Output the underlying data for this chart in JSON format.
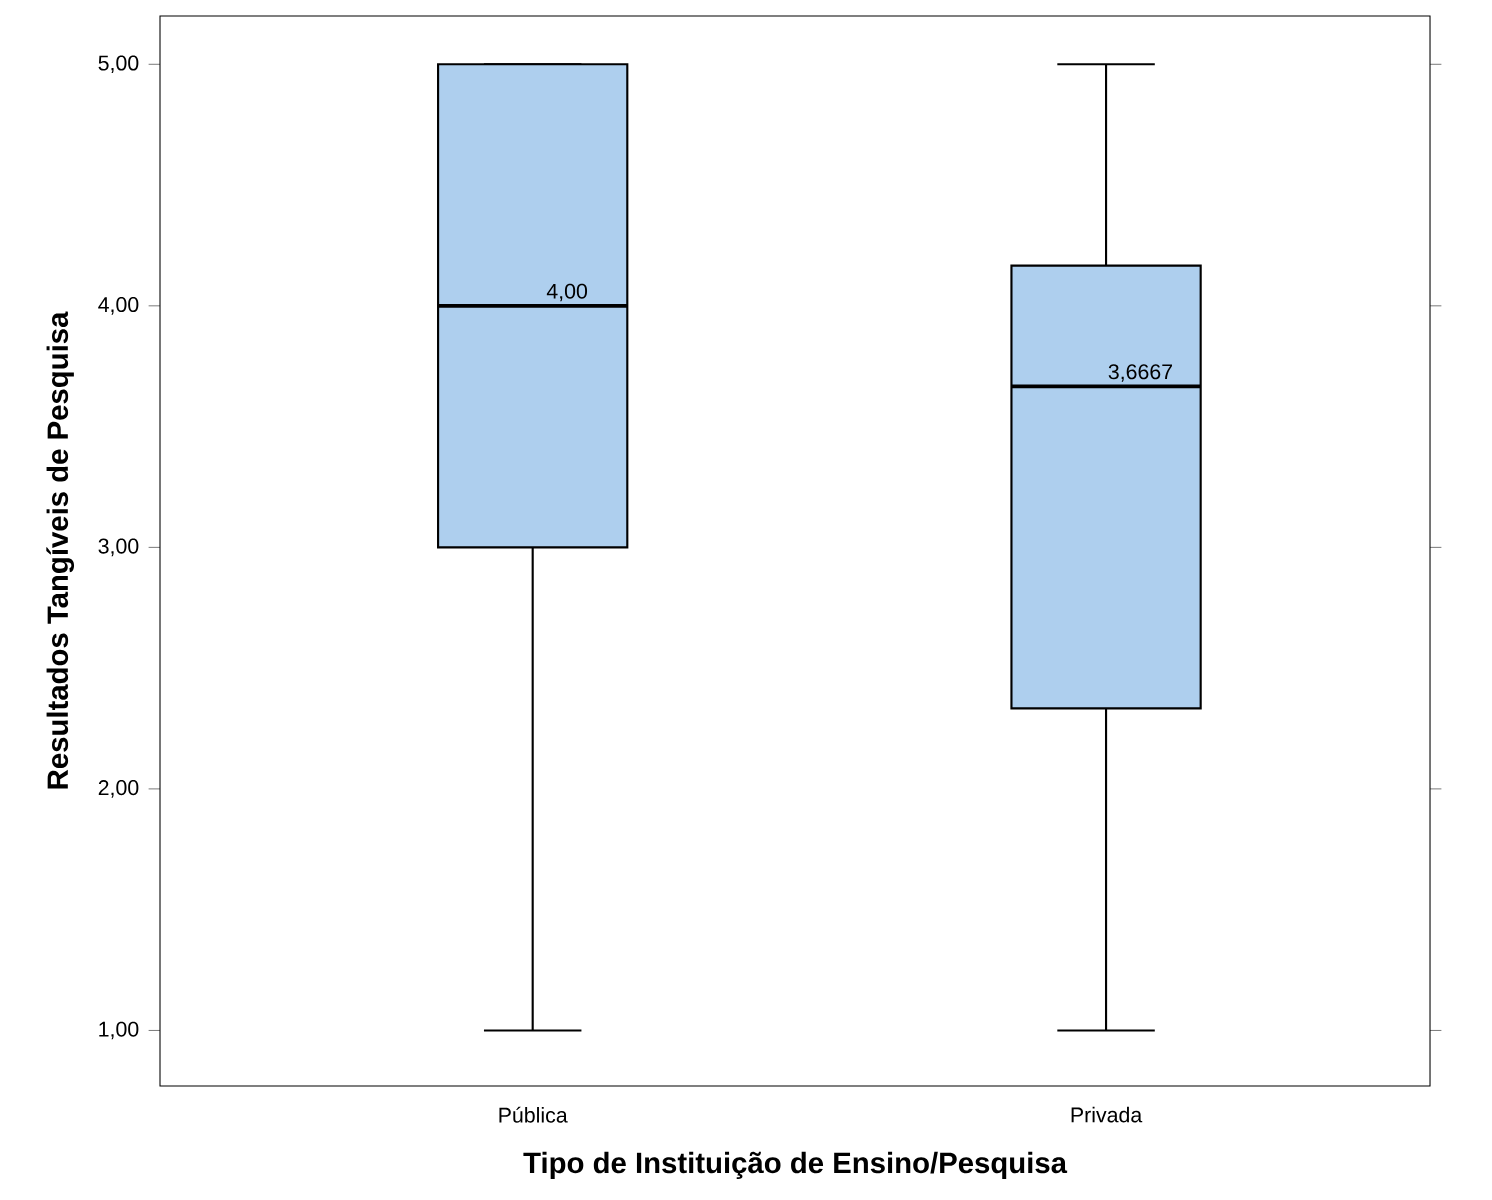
{
  "chart_data": {
    "type": "box",
    "xlabel": "Tipo de Instituição de Ensino/Pesquisa",
    "ylabel": "Resultados Tangíveis de Pesquisa",
    "categories": [
      "Pública",
      "Privada"
    ],
    "color": "#aecfee",
    "boxes": [
      {
        "low": 1,
        "q1": 3,
        "median": 4,
        "q3": 5,
        "high": 5
      },
      {
        "low": 1,
        "q1": 2.3333,
        "median": 3.6667,
        "q3": 4.1667,
        "high": 5
      }
    ],
    "ylim": [
      0.77,
      5.2
    ],
    "yticks": [
      {
        "value": 1,
        "label": "1,00"
      },
      {
        "value": 2,
        "label": "2,00"
      },
      {
        "value": 3,
        "label": "3,00"
      },
      {
        "value": 4,
        "label": "4,00"
      },
      {
        "value": 5,
        "label": "5,00"
      }
    ],
    "annotations": [
      "4,00",
      "3,6667"
    ]
  }
}
